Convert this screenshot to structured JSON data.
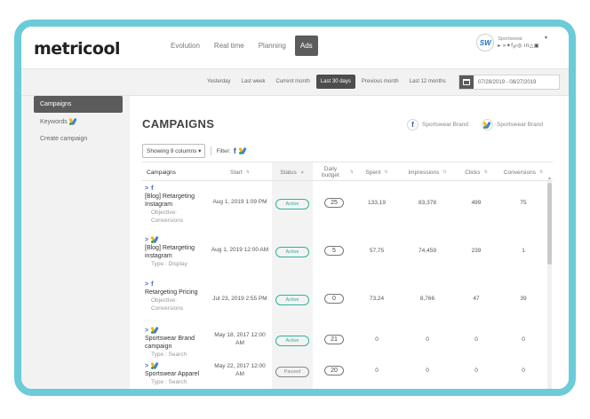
{
  "header": {
    "logo": "metricool",
    "nav": [
      "Evolution",
      "Real time",
      "Planning",
      "Ads"
    ],
    "active_nav": "Ads",
    "brand_initials": "SW",
    "brand_name": "Sportswear",
    "brand_icons": "▸ »✦f℘◎ in△▣"
  },
  "datebar": {
    "periods": [
      "Yesterday",
      "Last week",
      "Current month",
      "Last 30 days",
      "Previous month",
      "Last 12 months"
    ],
    "active_period": "Last 30 days",
    "range": "07/28/2019 - 08/27/2019"
  },
  "sidebar": {
    "items": [
      "Campaigns",
      "Keywords",
      "Create campaign"
    ]
  },
  "panel": {
    "title": "CAMPAIGNS",
    "accounts": [
      {
        "platform": "facebook",
        "name": "Sportswear Brand"
      },
      {
        "platform": "google-ads",
        "name": "Sportswear Brand"
      }
    ],
    "columns_select": "Showing 9 columns ▾",
    "filter_label": "Filter:",
    "fb_glyph": "f"
  },
  "table": {
    "columns": [
      "Campaigns",
      "Start",
      "Status",
      "Daily budget",
      "Spent",
      "Impressions",
      "Clicks",
      "Conversions"
    ],
    "sort_up": "▲",
    "sort_both": "⇅",
    "chevron": ">",
    "rows": [
      {
        "platform": "facebook",
        "name": "[Blog] Retargeting Instagram",
        "sub": "Objective: Conversions",
        "start": "Aug 1, 2019 1:09 PM",
        "status": "Active",
        "budget": "25",
        "spent": "133,19",
        "impressions": "83,378",
        "clicks": "499",
        "conversions": "75"
      },
      {
        "platform": "google-ads",
        "name": "[Blog] Retargeting instagram",
        "sub": "Type : Display",
        "start": "Aug 1, 2019 12:00 AM",
        "status": "Active",
        "budget": "5",
        "spent": "57,75",
        "impressions": "74,459",
        "clicks": "239",
        "conversions": "1"
      },
      {
        "platform": "facebook",
        "name": "Retargeting Pricing",
        "sub": "Objective: Conversions",
        "start": "Jul 23, 2019 2:55 PM",
        "status": "Active",
        "budget": "0",
        "spent": "73,24",
        "impressions": "8,766",
        "clicks": "47",
        "conversions": "39"
      },
      {
        "platform": "google-ads",
        "name": "Sportswear Brand campaign",
        "sub": "Type : Search",
        "start": "May 18, 2017 12:00 AM",
        "status": "Active",
        "budget": "21",
        "spent": "0",
        "impressions": "0",
        "clicks": "0",
        "conversions": "0"
      },
      {
        "platform": "google-ads",
        "name": "Sportswear Apparel",
        "sub": "Type : Search",
        "start": "May 22, 2017 12:00 AM",
        "status": "Paused",
        "budget": "20",
        "spent": "0",
        "impressions": "0",
        "clicks": "0",
        "conversions": "0"
      }
    ]
  },
  "colors": {
    "frame": "#6ccbd8",
    "active_nav": "#5c5c5c",
    "status_active": "#2db39e",
    "facebook": "#2d5ea8"
  }
}
